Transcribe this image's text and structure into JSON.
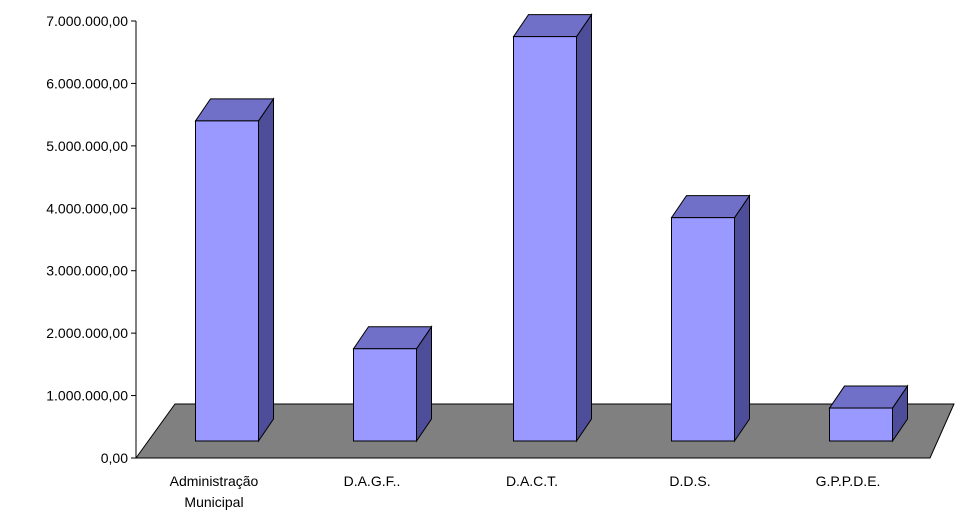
{
  "chart_data": {
    "type": "bar",
    "style": "3d-column",
    "categories": [
      "Administração Municipal",
      "D.A.G.F..",
      "D.A.C.T.",
      "D.D.S.",
      "G.P.P.D.E."
    ],
    "category_label_lines": [
      [
        "Administração",
        "Municipal"
      ],
      [
        "D.A.G.F.."
      ],
      [
        "D.A.C.T."
      ],
      [
        "D.D.S."
      ],
      [
        "G.P.P.D.E."
      ]
    ],
    "values": [
      5400000,
      1750000,
      6750000,
      3850000,
      800000
    ],
    "ylim": [
      0,
      7000000
    ],
    "yticks": [
      0,
      1000000,
      2000000,
      3000000,
      4000000,
      5000000,
      6000000,
      7000000
    ],
    "ytick_labels": [
      "0,00",
      "1.000.000,00",
      "2.000.000,00",
      "3.000.000,00",
      "4.000.000,00",
      "5.000.000,00",
      "6.000.000,00",
      "7.000.000,00"
    ],
    "title": "",
    "xlabel": "",
    "ylabel": "",
    "legend": "none",
    "grid": false,
    "colors": {
      "bar_front": "#9999ff",
      "bar_top": "#7070c8",
      "bar_side": "#4d4d99",
      "floor": "#808080"
    }
  }
}
